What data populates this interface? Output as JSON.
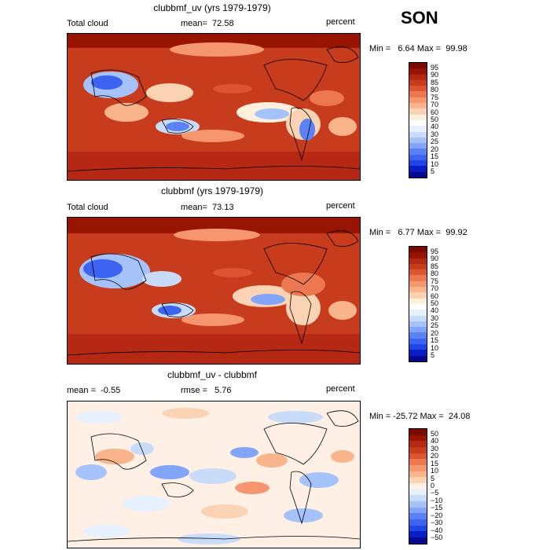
{
  "season": "SON",
  "colors": {
    "levels_top": [
      "#08088c",
      "#0a1ec8",
      "#1e46e6",
      "#3c64f0",
      "#5a82f5",
      "#82a5fa",
      "#a5c3fa",
      "#c8dcfa",
      "#e6f0ff",
      "#ffffff",
      "#fff0dc",
      "#fad2b4",
      "#fab48c",
      "#f5966e",
      "#eb7850",
      "#dc5532",
      "#c83c1e",
      "#b42814",
      "#961400",
      "#780a00"
    ],
    "levels_diff": [
      "#08088c",
      "#0a1ec8",
      "#1e46e6",
      "#3c64f0",
      "#5a82f5",
      "#82a5fa",
      "#a5c3fa",
      "#c8dcfa",
      "#e6f0ff",
      "#fff0e6",
      "#fad2b4",
      "#fab48c",
      "#f5966e",
      "#eb7850",
      "#dc5532",
      "#c83c1e",
      "#b42814",
      "#961400",
      "#780a00"
    ]
  },
  "panels": [
    {
      "title": "clubbmf_uv (yrs 1979-1979)",
      "left_label": "Total cloud",
      "mean_text": "mean=  72.58",
      "unit": "percent",
      "minmax": "Min =   6.64 Max =  99.98",
      "ticks": [
        "95",
        "90",
        "85",
        "80",
        "75",
        "70",
        "60",
        "50",
        "40",
        "30",
        "25",
        "20",
        "15",
        "10",
        "5"
      ]
    },
    {
      "title": "clubbmf (yrs 1979-1979)",
      "left_label": "Total cloud",
      "mean_text": "mean=  73.13",
      "unit": "percent",
      "minmax": "Min =   6.77 Max =  99.92",
      "ticks": [
        "95",
        "90",
        "85",
        "80",
        "75",
        "70",
        "60",
        "50",
        "40",
        "30",
        "25",
        "20",
        "15",
        "10",
        "5"
      ]
    },
    {
      "title": "clubbmf_uv - clubbmf",
      "left_label": "mean =  -0.55",
      "mean_text": "rmse =   5.76",
      "unit": "percent",
      "minmax": "Min = -25.72 Max =  24.08",
      "ticks": [
        "50",
        "40",
        "30",
        "20",
        "15",
        "10",
        "5",
        "0",
        "−5",
        "−10",
        "−15",
        "−20",
        "−30",
        "−40",
        "−50"
      ]
    }
  ],
  "chart_data": [
    {
      "type": "heatmap",
      "title": "clubbmf_uv (yrs 1979-1979)",
      "variable": "Total cloud",
      "units": "percent",
      "mean": 72.58,
      "min": 6.64,
      "max": 99.98,
      "levels": [
        5,
        10,
        15,
        20,
        25,
        30,
        40,
        50,
        60,
        70,
        75,
        80,
        85,
        90,
        95
      ]
    },
    {
      "type": "heatmap",
      "title": "clubbmf (yrs 1979-1979)",
      "variable": "Total cloud",
      "units": "percent",
      "mean": 73.13,
      "min": 6.77,
      "max": 99.92,
      "levels": [
        5,
        10,
        15,
        20,
        25,
        30,
        40,
        50,
        60,
        70,
        75,
        80,
        85,
        90,
        95
      ]
    },
    {
      "type": "heatmap",
      "title": "clubbmf_uv - clubbmf",
      "units": "percent",
      "mean": -0.55,
      "rmse": 5.76,
      "min": -25.72,
      "max": 24.08,
      "levels": [
        -50,
        -40,
        -30,
        -20,
        -15,
        -10,
        -5,
        0,
        5,
        10,
        15,
        20,
        30,
        40,
        50
      ]
    }
  ]
}
